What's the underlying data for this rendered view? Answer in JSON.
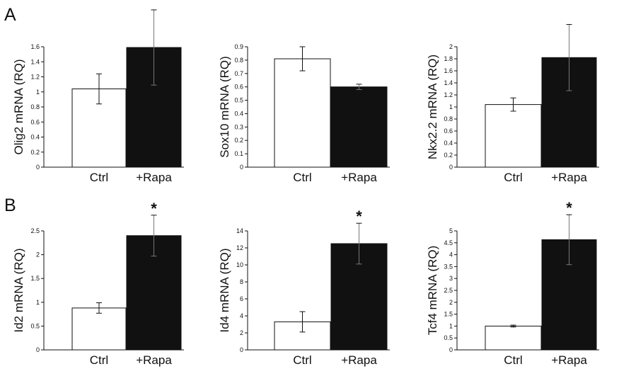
{
  "figure": {
    "panel_labels": [
      "A",
      "B"
    ]
  },
  "chart_data": [
    {
      "type": "bar",
      "panel": "A",
      "categories": [
        "Ctrl",
        "+Rapa"
      ],
      "values": [
        1.04,
        1.59
      ],
      "error": [
        0.2,
        0.5
      ],
      "colors": [
        "#ffffff",
        "#111111"
      ],
      "ylabel": "Olig2 mRNA (RQ)",
      "ylim": [
        0,
        1.6
      ],
      "yticks": [
        "0",
        "0.2",
        "0.4",
        "0.6",
        "0.8",
        "1",
        "1.2",
        "1.4",
        "1.6"
      ],
      "significance": [
        "",
        ""
      ]
    },
    {
      "type": "bar",
      "panel": "A",
      "categories": [
        "Ctrl",
        "+Rapa"
      ],
      "values": [
        0.81,
        0.6
      ],
      "error": [
        0.09,
        0.02
      ],
      "colors": [
        "#ffffff",
        "#111111"
      ],
      "ylabel": "Sox10 mRNA (RQ)",
      "ylim": [
        0,
        0.9
      ],
      "yticks": [
        "0",
        "0.1",
        "0.2",
        "0.3",
        "0.4",
        "0.5",
        "0.6",
        "0.7",
        "0.8",
        "0.9"
      ],
      "significance": [
        "",
        ""
      ]
    },
    {
      "type": "bar",
      "panel": "A",
      "categories": [
        "Ctrl",
        "+Rapa"
      ],
      "values": [
        1.04,
        1.82
      ],
      "error": [
        0.11,
        0.55
      ],
      "colors": [
        "#ffffff",
        "#111111"
      ],
      "ylabel": "Nkx2.2 mRNA (RQ)",
      "ylim": [
        0,
        2
      ],
      "yticks": [
        "0",
        "0.2",
        "0.4",
        "0.6",
        "0.8",
        "1",
        "1.2",
        "1.4",
        "1.6",
        "1.8",
        "2"
      ],
      "significance": [
        "",
        ""
      ]
    },
    {
      "type": "bar",
      "panel": "B",
      "categories": [
        "Ctrl",
        "+Rapa"
      ],
      "values": [
        0.88,
        2.4
      ],
      "error": [
        0.11,
        0.43
      ],
      "colors": [
        "#ffffff",
        "#111111"
      ],
      "ylabel": "Id2 mRNA (RQ)",
      "ylim": [
        0,
        2.5
      ],
      "yticks": [
        "0",
        "0.5",
        "1",
        "1.5",
        "2",
        "2.5"
      ],
      "significance": [
        "",
        "*"
      ]
    },
    {
      "type": "bar",
      "panel": "B",
      "categories": [
        "Ctrl",
        "+Rapa"
      ],
      "values": [
        3.3,
        12.5
      ],
      "error": [
        1.2,
        2.4
      ],
      "colors": [
        "#ffffff",
        "#111111"
      ],
      "ylabel": "Id4 mRNA (RQ)",
      "ylim": [
        0,
        14
      ],
      "yticks": [
        "0",
        "2",
        "4",
        "6",
        "8",
        "10",
        "12",
        "14"
      ],
      "significance": [
        "",
        "*"
      ]
    },
    {
      "type": "bar",
      "panel": "B",
      "categories": [
        "Ctrl",
        "+Rapa"
      ],
      "values": [
        1.0,
        4.63
      ],
      "error": [
        0.04,
        1.05
      ],
      "colors": [
        "#ffffff",
        "#111111"
      ],
      "ylabel": "Tcf4 mRNA (RQ)",
      "ylim": [
        0,
        5
      ],
      "yticks": [
        "0",
        "0.5",
        "1",
        "1.5",
        "2",
        "2.5",
        "3",
        "3.5",
        "4",
        "4.5",
        "5"
      ],
      "significance": [
        "",
        "*"
      ]
    }
  ]
}
